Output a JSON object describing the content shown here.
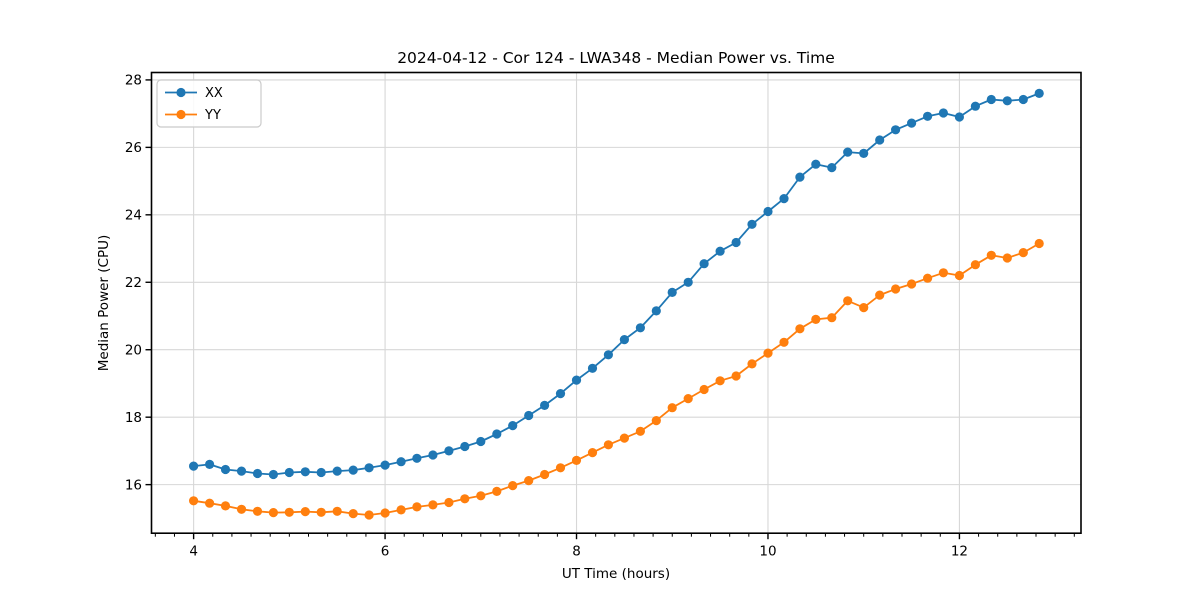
{
  "chart_data": {
    "type": "line",
    "title": "2024-04-12 - Cor 124 - LWA348 - Median Power vs. Time",
    "xlabel": "UT Time (hours)",
    "ylabel": "Median Power (CPU)",
    "grid": true,
    "legend_position": "upper left",
    "marker": "circle",
    "background_color": "#ffffff",
    "grid_color": "#d7d7d7",
    "spine_color": "#000000",
    "xlim": [
      3.56,
      13.27
    ],
    "ylim": [
      14.56,
      28.22
    ],
    "xticks": [
      4,
      6,
      8,
      10,
      12
    ],
    "yticks": [
      16,
      18,
      20,
      22,
      24,
      26,
      28
    ],
    "x_minor_tick_step": 0.2,
    "x": [
      4.0,
      4.167,
      4.333,
      4.5,
      4.667,
      4.833,
      5.0,
      5.167,
      5.333,
      5.5,
      5.667,
      5.833,
      6.0,
      6.167,
      6.333,
      6.5,
      6.667,
      6.833,
      7.0,
      7.167,
      7.333,
      7.5,
      7.667,
      7.833,
      8.0,
      8.167,
      8.333,
      8.5,
      8.667,
      8.833,
      9.0,
      9.167,
      9.333,
      9.5,
      9.667,
      9.833,
      10.0,
      10.167,
      10.333,
      10.5,
      10.667,
      10.833,
      11.0,
      11.167,
      11.333,
      11.5,
      11.667,
      11.833,
      12.0,
      12.167,
      12.333,
      12.5,
      12.667,
      12.833
    ],
    "series": [
      {
        "name": "XX",
        "color": "#1f77b4",
        "values": [
          16.55,
          16.6,
          16.45,
          16.4,
          16.33,
          16.3,
          16.36,
          16.38,
          16.36,
          16.4,
          16.43,
          16.5,
          16.58,
          16.68,
          16.78,
          16.88,
          17.0,
          17.13,
          17.28,
          17.5,
          17.75,
          18.05,
          18.35,
          18.7,
          19.1,
          19.45,
          19.85,
          20.3,
          20.65,
          21.15,
          21.7,
          22.0,
          22.55,
          22.92,
          23.18,
          23.72,
          24.1,
          24.48,
          25.12,
          25.5,
          25.4,
          25.86,
          25.82,
          26.22,
          26.52,
          26.72,
          26.92,
          27.02,
          26.9,
          27.22,
          27.42,
          27.38,
          27.42,
          27.6
        ]
      },
      {
        "name": "YY",
        "color": "#ff7f0e",
        "values": [
          15.52,
          15.45,
          15.37,
          15.27,
          15.21,
          15.17,
          15.18,
          15.2,
          15.18,
          15.21,
          15.14,
          15.1,
          15.16,
          15.25,
          15.34,
          15.4,
          15.47,
          15.58,
          15.67,
          15.8,
          15.97,
          16.12,
          16.3,
          16.5,
          16.72,
          16.95,
          17.18,
          17.38,
          17.58,
          17.9,
          18.28,
          18.55,
          18.82,
          19.08,
          19.22,
          19.58,
          19.9,
          20.22,
          20.62,
          20.9,
          20.95,
          21.45,
          21.25,
          21.62,
          21.8,
          21.95,
          22.12,
          22.28,
          22.2,
          22.52,
          22.8,
          22.72,
          22.88,
          23.15
        ]
      }
    ]
  }
}
